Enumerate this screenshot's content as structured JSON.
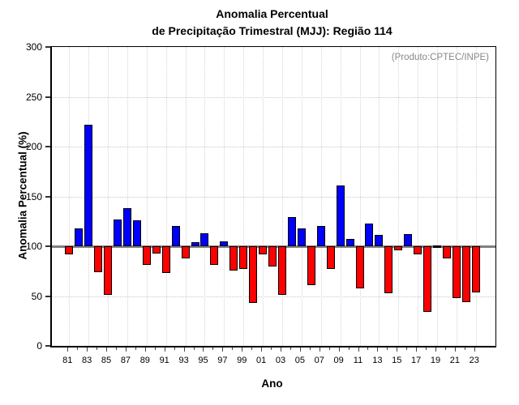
{
  "chart_data": {
    "type": "bar",
    "title_line1": "Anomalia Percentual",
    "title_line2": "de Precipitação Trimestral (MJJ): Região 114",
    "annotation": "(Produto:CPTEC/INPE)",
    "xlabel": "Ano",
    "ylabel": "Anomalia Percentual (%)",
    "ylim": [
      0,
      300
    ],
    "yticks": [
      0,
      50,
      100,
      150,
      200,
      250,
      300
    ],
    "baseline": 100,
    "h_gridlines": [
      50,
      150,
      200,
      250
    ],
    "grid": "dotted",
    "legend": "none",
    "colors": {
      "above_baseline": "#0000ff",
      "below_baseline": "#ff0000",
      "baseline_line": "#808080",
      "bar_outline": "#000000",
      "annotation_text": "#888888"
    },
    "x_tick_label_years_step": 2,
    "years": [
      1981,
      1982,
      1983,
      1984,
      1985,
      1986,
      1987,
      1988,
      1989,
      1990,
      1991,
      1992,
      1993,
      1994,
      1995,
      1996,
      1997,
      1998,
      1999,
      2000,
      2001,
      2002,
      2003,
      2004,
      2005,
      2006,
      2007,
      2008,
      2009,
      2010,
      2011,
      2012,
      2013,
      2014,
      2015,
      2016,
      2017,
      2018,
      2019,
      2020,
      2021,
      2022,
      2023
    ],
    "values": [
      92,
      118,
      222,
      74,
      51,
      127,
      138,
      126,
      81,
      93,
      73,
      120,
      88,
      104,
      113,
      81,
      105,
      76,
      77,
      43,
      92,
      80,
      51,
      129,
      118,
      61,
      120,
      77,
      161,
      107,
      58,
      123,
      111,
      53,
      96,
      112,
      92,
      34,
      100,
      88,
      48,
      44,
      54
    ]
  }
}
